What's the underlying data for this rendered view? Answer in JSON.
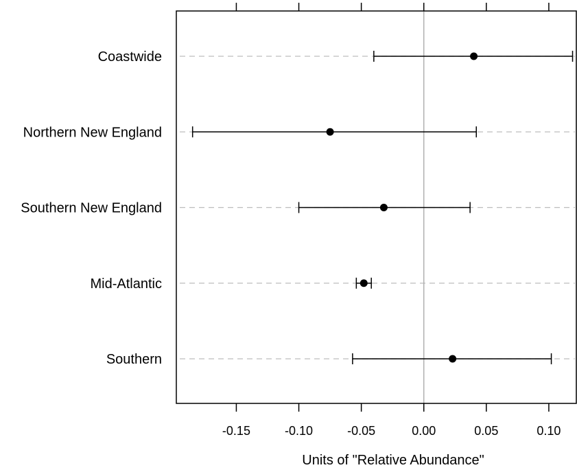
{
  "chart_data": {
    "type": "forest",
    "xlabel": "Units of \"Relative Abundance\"",
    "xlim": [
      -0.198,
      0.122
    ],
    "xticks": [
      {
        "value": -0.15,
        "label": "-0.15"
      },
      {
        "value": -0.1,
        "label": "-0.10"
      },
      {
        "value": -0.05,
        "label": "-0.05"
      },
      {
        "value": 0.0,
        "label": "0.00"
      },
      {
        "value": 0.05,
        "label": "0.05"
      },
      {
        "value": 0.1,
        "label": "0.10"
      }
    ],
    "reference_line": 0,
    "grid": "dashed horizontal lines at each category",
    "rows": [
      {
        "label": "Coastwide",
        "estimate": 0.04,
        "lower": -0.04,
        "upper": 0.119
      },
      {
        "label": "Northern New England",
        "estimate": -0.075,
        "lower": -0.185,
        "upper": 0.042
      },
      {
        "label": "Southern New England",
        "estimate": -0.032,
        "lower": -0.1,
        "upper": 0.037
      },
      {
        "label": "Mid-Atlantic",
        "estimate": -0.048,
        "lower": -0.054,
        "upper": -0.042
      },
      {
        "label": "Southern",
        "estimate": 0.023,
        "lower": -0.057,
        "upper": 0.102
      }
    ],
    "colors": {
      "estimate": "#000000",
      "interval": "#000000",
      "gridline": "#bdbdbd",
      "reference_line": "#b0b0b0"
    }
  }
}
